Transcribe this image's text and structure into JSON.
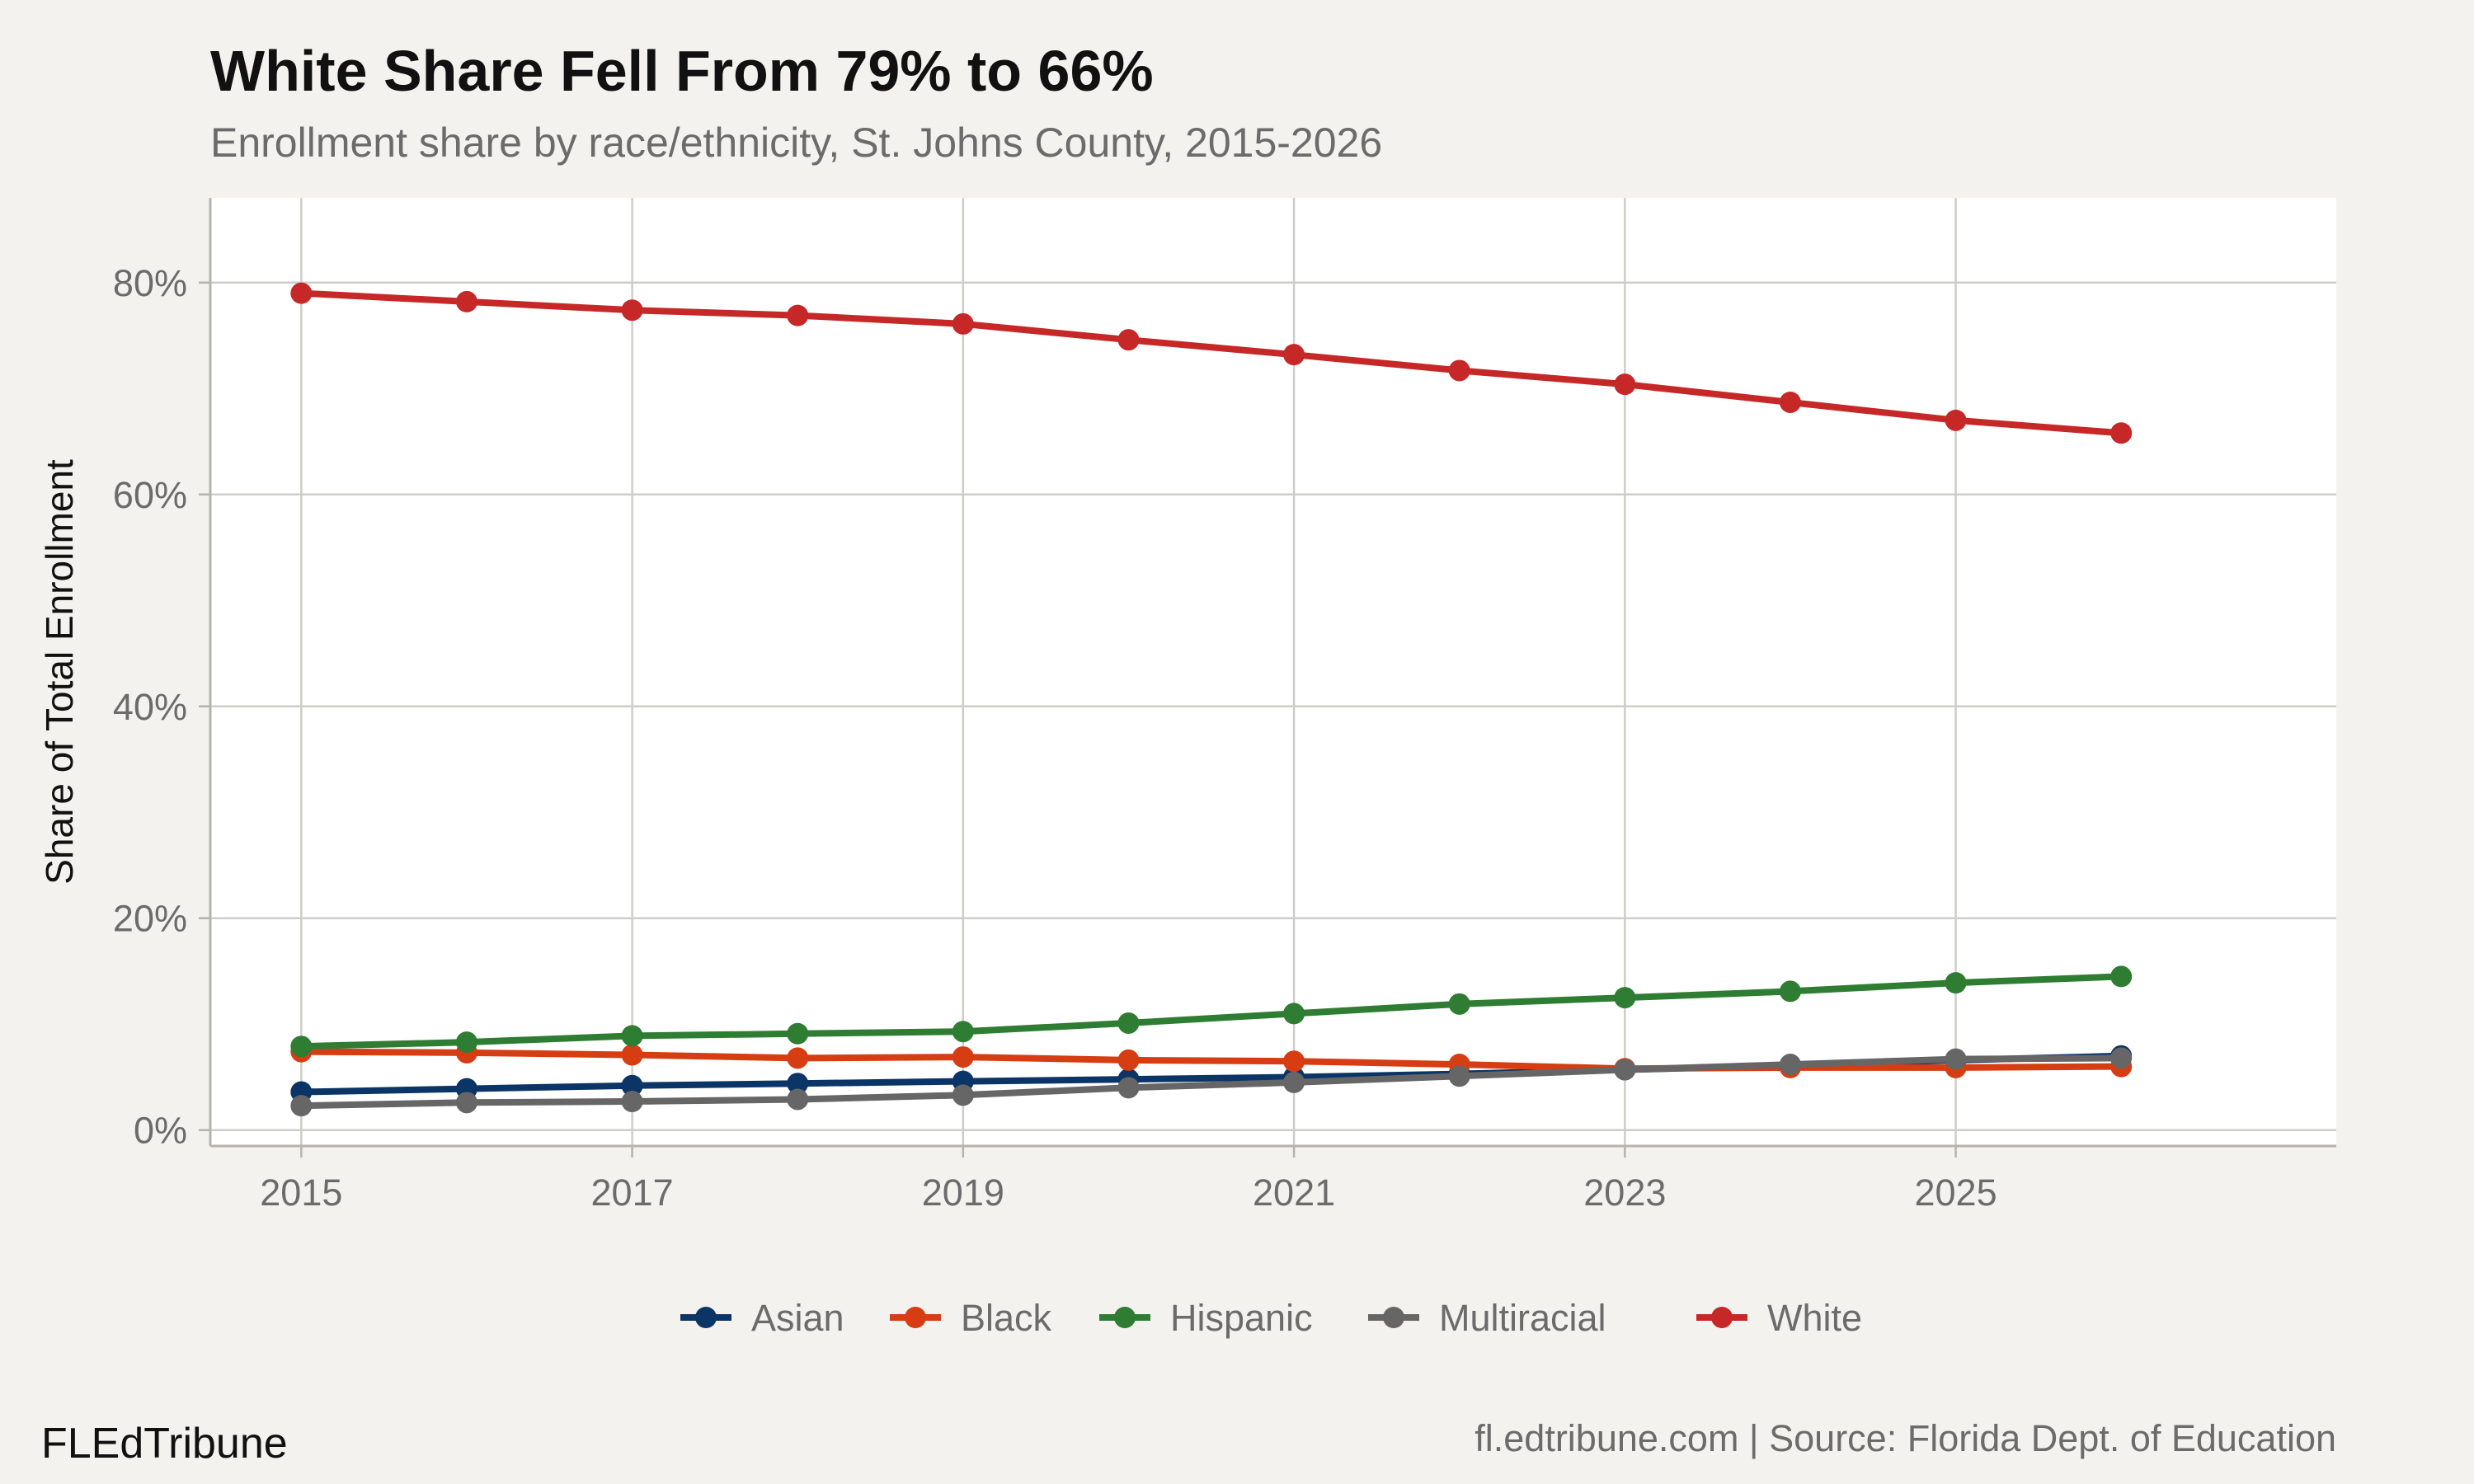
{
  "title": "White Share Fell From 79% to 66%",
  "subtitle": "Enrollment share by race/ethnicity, St. Johns County, 2015-2026",
  "brand": "FLEdTribune",
  "source": "fl.edtribune.com | Source: Florida Dept. of Education",
  "chart_data": {
    "type": "line",
    "title": "White Share Fell From 79% to 66%",
    "subtitle": "Enrollment share by race/ethnicity, St. Johns County, 2015-2026",
    "xlabel": "",
    "ylabel": "Share of Total Enrollment",
    "x": [
      2015,
      2016,
      2017,
      2018,
      2019,
      2020,
      2021,
      2022,
      2023,
      2024,
      2025,
      2026
    ],
    "xlim": [
      2014.45,
      2027.3
    ],
    "ylim": [
      -1.5,
      88
    ],
    "x_ticks": [
      2015,
      2017,
      2019,
      2021,
      2023,
      2025
    ],
    "x_tick_labels": [
      "2015",
      "2017",
      "2019",
      "2021",
      "2023",
      "2025"
    ],
    "y_ticks": [
      0,
      20,
      40,
      60,
      80
    ],
    "y_tick_labels": [
      "0%",
      "20%",
      "40%",
      "60%",
      "80%"
    ],
    "grid": true,
    "legend_position": "bottom",
    "series": [
      {
        "name": "Asian",
        "color": "#0b3467",
        "values": [
          3.6,
          3.9,
          4.2,
          4.4,
          4.6,
          4.8,
          5.0,
          5.3,
          5.7,
          6.1,
          6.6,
          7.0
        ]
      },
      {
        "name": "Black",
        "color": "#d63d12",
        "values": [
          7.4,
          7.3,
          7.1,
          6.8,
          6.9,
          6.6,
          6.5,
          6.2,
          5.8,
          5.9,
          5.9,
          6.0
        ]
      },
      {
        "name": "Hispanic",
        "color": "#2e7d32",
        "values": [
          7.9,
          8.3,
          8.9,
          9.1,
          9.3,
          10.1,
          11.0,
          11.9,
          12.5,
          13.1,
          13.9,
          14.5
        ]
      },
      {
        "name": "Multiracial",
        "color": "#666666",
        "values": [
          2.3,
          2.6,
          2.7,
          2.9,
          3.3,
          4.0,
          4.5,
          5.1,
          5.7,
          6.2,
          6.7,
          6.8
        ]
      },
      {
        "name": "White",
        "color": "#c62828",
        "values": [
          79.0,
          78.2,
          77.4,
          76.9,
          76.1,
          74.6,
          73.2,
          71.7,
          70.4,
          68.7,
          67.0,
          65.8
        ]
      }
    ]
  }
}
